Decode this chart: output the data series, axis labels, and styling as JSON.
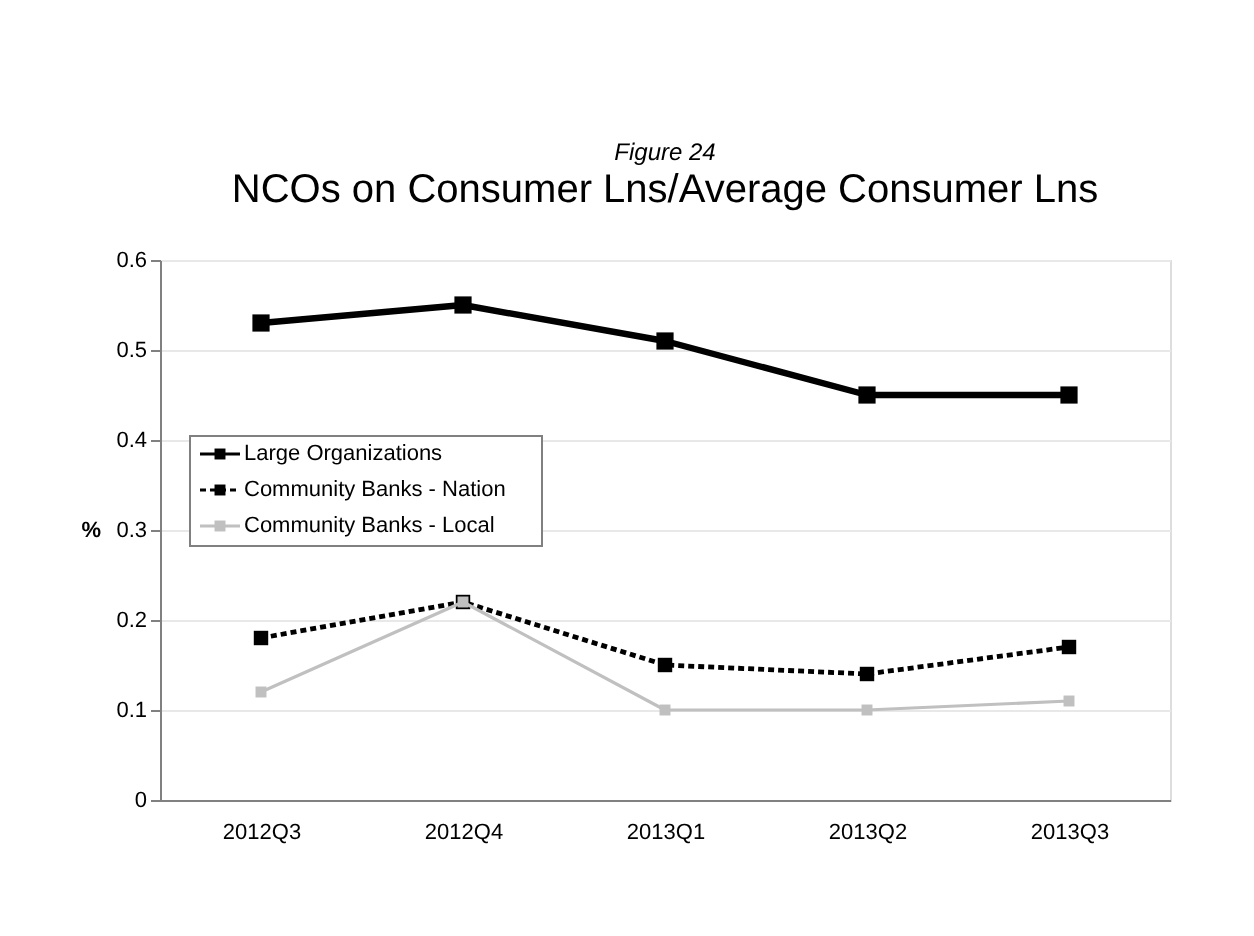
{
  "chart_data": {
    "type": "line",
    "title": "NCOs on Consumer Lns/Average Consumer Lns",
    "subtitle": "Figure 24",
    "ylabel": "%",
    "categories": [
      "2012Q3",
      "2012Q4",
      "2013Q1",
      "2013Q2",
      "2013Q3"
    ],
    "series": [
      {
        "name": "Large Organizations",
        "color": "#000000",
        "line_style": "solid",
        "values": [
          0.53,
          0.55,
          0.51,
          0.45,
          0.45
        ]
      },
      {
        "name": "Community Banks - Nation",
        "color": "#000000",
        "line_style": "dashed",
        "values": [
          0.18,
          0.22,
          0.15,
          0.14,
          0.17
        ]
      },
      {
        "name": "Community Banks - Local",
        "color": "#c0c0c0",
        "line_style": "solid",
        "values": [
          0.12,
          0.22,
          0.1,
          0.1,
          0.11
        ]
      }
    ],
    "ylim": [
      0,
      0.6
    ],
    "yticks": [
      0,
      0.1,
      0.2,
      0.3,
      0.4,
      0.5,
      0.6
    ],
    "grid": "y",
    "legend": "left",
    "marker": "square"
  }
}
